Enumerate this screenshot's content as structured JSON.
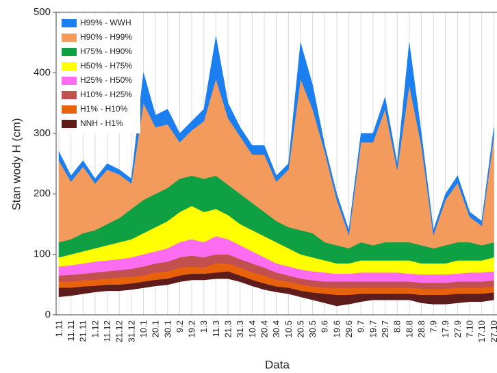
{
  "chart_data": {
    "type": "stacked-area",
    "y_label": "Stan wody H (cm)",
    "x_label": "Data",
    "categories": [
      "1.11",
      "11.11",
      "21.11",
      "1.12",
      "11.12",
      "21.12",
      "31.12",
      "10.1",
      "20.1",
      "30.1",
      "9.2",
      "19.2",
      "1.3",
      "11.3",
      "21.3",
      "31.3",
      "10.4",
      "20.4",
      "30.4",
      "10.5",
      "20.5",
      "30.5",
      "9.6",
      "19.6",
      "29.6",
      "9.7",
      "19.7",
      "29.7",
      "8.8",
      "18.8",
      "28.8",
      "7.9",
      "17.9",
      "27.9",
      "7.10",
      "17.10",
      "27.10"
    ],
    "base": [
      30,
      32,
      35,
      38,
      40,
      40,
      42,
      45,
      48,
      50,
      55,
      58,
      58,
      60,
      60,
      55,
      48,
      42,
      38,
      35,
      30,
      25,
      20,
      15,
      18,
      22,
      25,
      25,
      25,
      25,
      20,
      18,
      18,
      20,
      22,
      22,
      25
    ],
    "series": [
      {
        "name": "H99% - WWH",
        "color": "#1b7ff0",
        "values": [
          15,
          10,
          10,
          8,
          10,
          8,
          8,
          50,
          20,
          25,
          15,
          15,
          20,
          70,
          25,
          15,
          15,
          15,
          10,
          10,
          60,
          40,
          10,
          10,
          8,
          15,
          15,
          20,
          10,
          70,
          20,
          8,
          10,
          12,
          8,
          8,
          15
        ]
      },
      {
        "name": "H90% - H99%",
        "color": "#f29b5c",
        "values": [
          135,
          95,
          110,
          77,
          90,
          72,
          42,
          160,
          110,
          105,
          60,
          75,
          95,
          160,
          110,
          95,
          80,
          95,
          65,
          95,
          250,
          205,
          150,
          75,
          22,
          165,
          170,
          220,
          120,
          260,
          165,
          22,
          75,
          98,
          42,
          32,
          175
        ]
      },
      {
        "name": "H75% - H90%",
        "color": "#0ea043",
        "values": [
          25,
          25,
          30,
          30,
          35,
          40,
          50,
          55,
          55,
          55,
          55,
          50,
          55,
          55,
          50,
          50,
          45,
          40,
          35,
          35,
          40,
          40,
          30,
          30,
          25,
          30,
          25,
          30,
          30,
          30,
          30,
          25,
          30,
          30,
          30,
          25,
          25
        ]
      },
      {
        "name": "H50% - H75%",
        "color": "#ffff00",
        "values": [
          15,
          18,
          20,
          22,
          25,
          28,
          30,
          35,
          40,
          45,
          50,
          55,
          50,
          45,
          40,
          35,
          35,
          35,
          35,
          30,
          25,
          23,
          20,
          17,
          17,
          20,
          20,
          20,
          20,
          22,
          18,
          18,
          18,
          22,
          20,
          20,
          23
        ]
      },
      {
        "name": "H25% - H50%",
        "color": "#fb6cf0",
        "values": [
          15,
          16,
          17,
          18,
          18,
          18,
          19,
          20,
          20,
          22,
          25,
          27,
          25,
          30,
          25,
          23,
          20,
          17,
          15,
          15,
          15,
          15,
          15,
          13,
          13,
          15,
          15,
          15,
          15,
          13,
          14,
          14,
          14,
          13,
          15,
          15,
          15
        ]
      },
      {
        "name": "H10% - H25%",
        "color": "#c2504f",
        "values": [
          10,
          11,
          11,
          12,
          12,
          12,
          13,
          15,
          15,
          16,
          17,
          18,
          17,
          15,
          15,
          14,
          15,
          13,
          12,
          10,
          10,
          10,
          10,
          10,
          10,
          10,
          10,
          10,
          10,
          10,
          10,
          10,
          10,
          10,
          10,
          10,
          10
        ]
      },
      {
        "name": "H1% - H10%",
        "color": "#e8620c",
        "values": [
          10,
          10,
          10,
          10,
          10,
          12,
          11,
          10,
          12,
          12,
          13,
          12,
          10,
          15,
          13,
          13,
          12,
          13,
          11,
          10,
          10,
          10,
          10,
          12,
          12,
          10,
          10,
          10,
          10,
          10,
          10,
          10,
          10,
          10,
          10,
          10,
          10
        ]
      },
      {
        "name": "NNH - H1%",
        "color": "#5e1d1a",
        "values": [
          15,
          13,
          12,
          10,
          10,
          10,
          10,
          10,
          10,
          10,
          10,
          10,
          10,
          10,
          12,
          10,
          10,
          10,
          9,
          10,
          10,
          12,
          15,
          18,
          15,
          13,
          10,
          10,
          10,
          10,
          13,
          15,
          15,
          15,
          13,
          13,
          12
        ]
      }
    ],
    "ylim": [
      0,
      500
    ],
    "yticks": [
      0,
      100,
      200,
      300,
      400,
      500
    ],
    "grid": "x",
    "legend": "top-left"
  }
}
